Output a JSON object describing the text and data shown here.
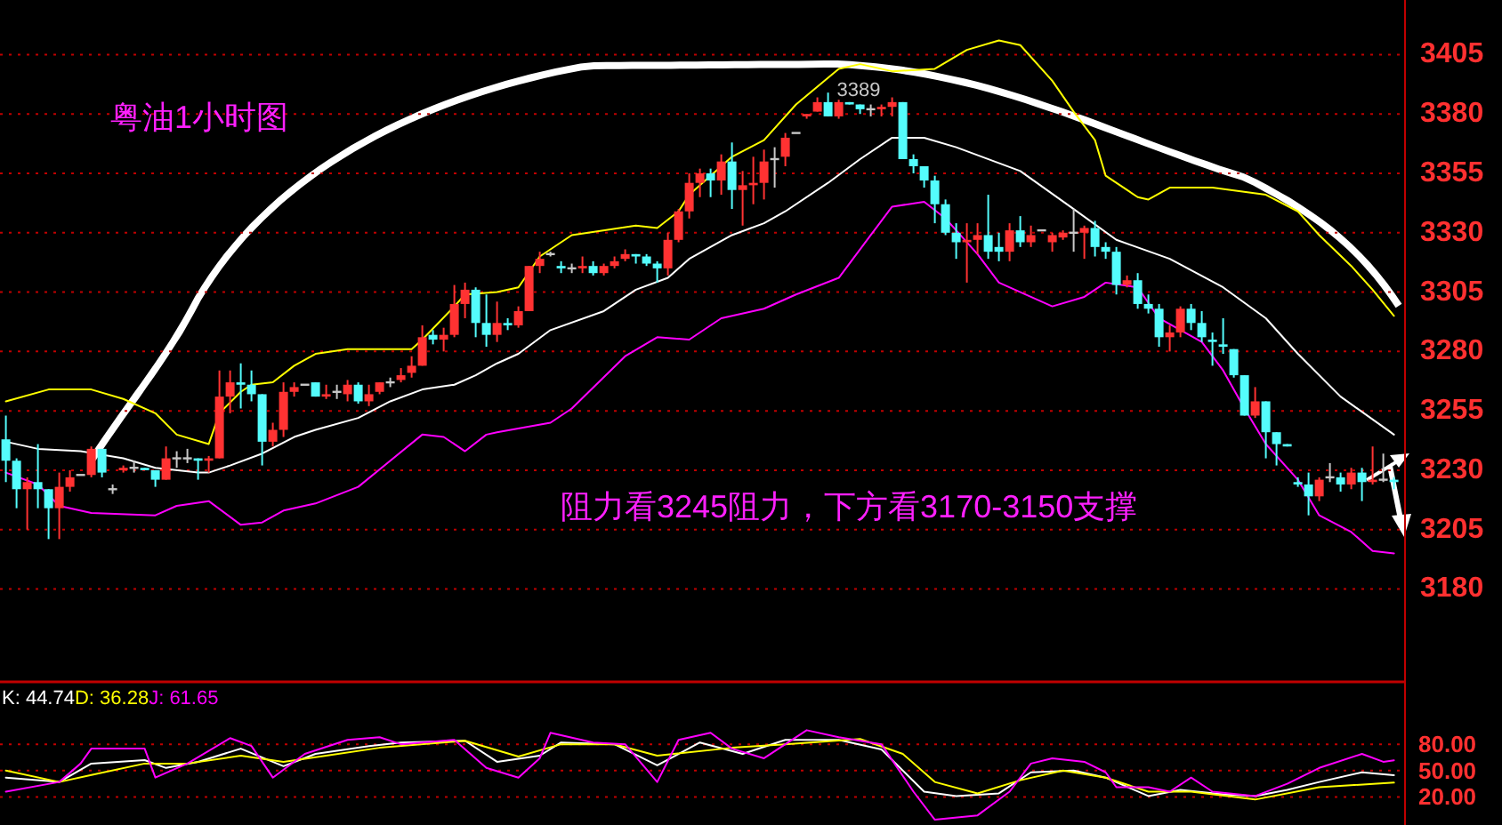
{
  "chart_data": [
    {
      "type": "candlestick",
      "title": "粤油1小时图",
      "categories": [
        null,
        null,
        null,
        null,
        null,
        null,
        null,
        null,
        null,
        null,
        null,
        null,
        null,
        null,
        null,
        null,
        null,
        null,
        null,
        null,
        null,
        null,
        null,
        null,
        null,
        null,
        null,
        null,
        null,
        null,
        null,
        null,
        null,
        null,
        null,
        null,
        null,
        null,
        null,
        null,
        null,
        null,
        null,
        null,
        null,
        null,
        null,
        null,
        null,
        null,
        null,
        null,
        null,
        null,
        null,
        null,
        null,
        null,
        null,
        null,
        null,
        null,
        null,
        null,
        null,
        null,
        null,
        null,
        null,
        null,
        null,
        null,
        null,
        null,
        null,
        null,
        null,
        null,
        null,
        null,
        null,
        null,
        null,
        null,
        null,
        null,
        null,
        null,
        null,
        null,
        null,
        null,
        null,
        null,
        null,
        null,
        null,
        null,
        null,
        null,
        null,
        null,
        null,
        null,
        null,
        null,
        null,
        null,
        null,
        null,
        null,
        null,
        null,
        null,
        null,
        null,
        null,
        null,
        null,
        null,
        null,
        null,
        null,
        null,
        null,
        null,
        null,
        null,
        null,
        null,
        null
      ],
      "ohlc": [
        [
          3243,
          3253,
          3225,
          3234
        ],
        [
          3234,
          3235,
          3214,
          3222
        ],
        [
          3222,
          3227,
          3205,
          3225
        ],
        [
          3225,
          3241,
          3214,
          3222
        ],
        [
          3222,
          3222,
          3201,
          3214
        ],
        [
          3214,
          3229,
          3201,
          3223
        ],
        [
          3223,
          3230,
          3221,
          3227
        ],
        [
          3228,
          3228,
          3228,
          3228
        ],
        [
          3228,
          3240,
          3227,
          3239
        ],
        [
          3239,
          3239,
          3227,
          3229
        ],
        [
          3222,
          3224,
          3220,
          3222
        ],
        [
          3230,
          3232,
          3229,
          3231
        ],
        [
          3231,
          3234,
          3229,
          3231
        ],
        [
          3231,
          3231,
          3230,
          3230
        ],
        [
          3230,
          3230,
          3223,
          3226
        ],
        [
          3226,
          3240,
          3226,
          3235
        ],
        [
          3235,
          3238,
          3231,
          3235
        ],
        [
          3235,
          3239,
          3233,
          3235
        ],
        [
          3235,
          3235,
          3226,
          3234
        ],
        [
          3234,
          3236,
          3229,
          3235
        ],
        [
          3235,
          3272,
          3235,
          3261
        ],
        [
          3261,
          3272,
          3254,
          3267
        ],
        [
          3267,
          3275,
          3256,
          3266
        ],
        [
          3266,
          3272,
          3259,
          3262
        ],
        [
          3262,
          3262,
          3232,
          3242
        ],
        [
          3242,
          3250,
          3240,
          3247
        ],
        [
          3247,
          3267,
          3244,
          3263
        ],
        [
          3263,
          3267,
          3261,
          3265
        ],
        [
          3266,
          3266,
          3266,
          3266
        ],
        [
          3267,
          3267,
          3261,
          3261
        ],
        [
          3261,
          3266,
          3260,
          3262
        ],
        [
          3263,
          3266,
          3260,
          3263
        ],
        [
          3262,
          3268,
          3259,
          3266
        ],
        [
          3266,
          3267,
          3258,
          3259
        ],
        [
          3259,
          3266,
          3257,
          3262
        ],
        [
          3263,
          3267,
          3262,
          3267
        ],
        [
          3267,
          3269,
          3265,
          3267
        ],
        [
          3268,
          3273,
          3267,
          3270
        ],
        [
          3271,
          3278,
          3269,
          3274
        ],
        [
          3274,
          3291,
          3274,
          3286
        ],
        [
          3287,
          3289,
          3283,
          3285
        ],
        [
          3285,
          3290,
          3280,
          3287
        ],
        [
          3287,
          3308,
          3286,
          3300
        ],
        [
          3300,
          3309,
          3294,
          3306
        ],
        [
          3306,
          3307,
          3286,
          3292
        ],
        [
          3292,
          3304,
          3282,
          3287
        ],
        [
          3287,
          3301,
          3284,
          3292
        ],
        [
          3292,
          3294,
          3289,
          3291
        ],
        [
          3291,
          3299,
          3290,
          3297
        ],
        [
          3297,
          3316,
          3297,
          3316
        ],
        [
          3316,
          3322,
          3313,
          3319
        ],
        [
          3321,
          3322,
          3320,
          3321
        ],
        [
          3316,
          3318,
          3313,
          3315
        ],
        [
          3315,
          3317,
          3313,
          3315
        ],
        [
          3315,
          3320,
          3313,
          3316
        ],
        [
          3316,
          3318,
          3312,
          3313
        ],
        [
          3313,
          3317,
          3312,
          3316
        ],
        [
          3316,
          3320,
          3315,
          3318
        ],
        [
          3319,
          3323,
          3318,
          3321
        ],
        [
          3321,
          3321,
          3317,
          3320
        ],
        [
          3320,
          3321,
          3316,
          3317
        ],
        [
          3317,
          3318,
          3309,
          3315
        ],
        [
          3315,
          3330,
          3312,
          3327
        ],
        [
          3327,
          3340,
          3326,
          3339
        ],
        [
          3339,
          3355,
          3336,
          3351
        ],
        [
          3351,
          3357,
          3345,
          3355
        ],
        [
          3355,
          3357,
          3345,
          3352
        ],
        [
          3352,
          3363,
          3346,
          3360
        ],
        [
          3360,
          3368,
          3340,
          3348
        ],
        [
          3348,
          3356,
          3333,
          3350
        ],
        [
          3350,
          3362,
          3342,
          3351
        ],
        [
          3351,
          3365,
          3344,
          3360
        ],
        [
          3361,
          3366,
          3349,
          3361
        ],
        [
          3362,
          3372,
          3358,
          3370
        ],
        [
          3372,
          3372,
          3372,
          3372
        ],
        [
          3379,
          3380,
          3378,
          3380
        ],
        [
          3381,
          3387,
          3381,
          3385
        ],
        [
          3385,
          3389,
          3379,
          3379
        ],
        [
          3379,
          3386,
          3378,
          3385
        ],
        [
          3385,
          3385,
          3384,
          3384
        ],
        [
          3384,
          3384,
          3380,
          3382
        ],
        [
          3382,
          3384,
          3379,
          3382
        ],
        [
          3382,
          3384,
          3379,
          3383
        ],
        [
          3383,
          3387,
          3379,
          3385
        ],
        [
          3385,
          3385,
          3361,
          3361
        ],
        [
          3361,
          3363,
          3355,
          3358
        ],
        [
          3358,
          3358,
          3349,
          3352
        ],
        [
          3352,
          3354,
          3334,
          3342
        ],
        [
          3342,
          3344,
          3329,
          3330
        ],
        [
          3330,
          3334,
          3319,
          3326
        ],
        [
          3326,
          3334,
          3309,
          3327
        ],
        [
          3327,
          3334,
          3321,
          3329
        ],
        [
          3329,
          3346,
          3319,
          3322
        ],
        [
          3324,
          3330,
          3318,
          3322
        ],
        [
          3322,
          3334,
          3318,
          3331
        ],
        [
          3331,
          3337,
          3324,
          3326
        ],
        [
          3326,
          3333,
          3324,
          3329
        ],
        [
          3331,
          3331,
          3331,
          3331
        ],
        [
          3326,
          3330,
          3322,
          3329
        ],
        [
          3328,
          3331,
          3327,
          3330
        ],
        [
          3330,
          3340,
          3322,
          3330
        ],
        [
          3330,
          3333,
          3319,
          3332
        ],
        [
          3332,
          3335,
          3320,
          3324
        ],
        [
          3324,
          3326,
          3319,
          3322
        ],
        [
          3322,
          3324,
          3304,
          3308
        ],
        [
          3308,
          3312,
          3307,
          3310
        ],
        [
          3310,
          3313,
          3298,
          3300
        ],
        [
          3300,
          3304,
          3296,
          3298
        ],
        [
          3298,
          3300,
          3282,
          3286
        ],
        [
          3286,
          3291,
          3280,
          3288
        ],
        [
          3288,
          3299,
          3286,
          3298
        ],
        [
          3298,
          3300,
          3289,
          3292
        ],
        [
          3292,
          3297,
          3284,
          3286
        ],
        [
          3285,
          3288,
          3274,
          3284
        ],
        [
          3283,
          3294,
          3279,
          3282
        ],
        [
          3281,
          3281,
          3269,
          3270
        ],
        [
          3270,
          3270,
          3253,
          3253
        ],
        [
          3253,
          3265,
          3252,
          3259
        ],
        [
          3259,
          3259,
          3235,
          3246
        ],
        [
          3246,
          3246,
          3232,
          3241
        ],
        [
          3241,
          3241,
          3240,
          3240
        ],
        [
          3225,
          3227,
          3223,
          3224
        ],
        [
          3224,
          3229,
          3211,
          3219
        ],
        [
          3219,
          3227,
          3217,
          3226
        ],
        [
          3227,
          3233,
          3225,
          3227
        ],
        [
          3227,
          3229,
          3221,
          3224
        ],
        [
          3224,
          3231,
          3222,
          3229
        ],
        [
          3229,
          3231,
          3217,
          3225
        ],
        [
          3225,
          3240,
          3224,
          3226
        ],
        [
          3226,
          3237,
          3225,
          3226
        ],
        [
          3226,
          3227,
          3222,
          3225
        ]
      ],
      "series": [
        {
          "type": "line",
          "color": "#ffff00",
          "values": [
            3259,
            null,
            null,
            null,
            3264,
            null,
            null,
            null,
            3264,
            null,
            null,
            3260,
            null,
            null,
            3254,
            null,
            3245,
            null,
            null,
            3241,
            3254,
            null,
            3263,
            3266,
            null,
            3267,
            null,
            3274,
            null,
            3279,
            null,
            null,
            3281,
            null,
            null,
            3281,
            null,
            null,
            3281,
            3285,
            null,
            null,
            3299,
            3304,
            null,
            null,
            3305,
            null,
            3307,
            null,
            3320,
            null,
            null,
            3329,
            null,
            null,
            null,
            null,
            null,
            3333,
            null,
            3332,
            null,
            3339,
            3346,
            null,
            null,
            3358,
            3362,
            null,
            null,
            3369,
            null,
            null,
            3384,
            null,
            null,
            null,
            3399,
            null,
            3401,
            null,
            null,
            3398,
            null,
            null,
            null,
            3399,
            null,
            null,
            3407,
            null,
            null,
            3411,
            null,
            3409,
            null,
            null,
            3394,
            null,
            3381,
            null,
            3369,
            3354,
            null,
            null,
            3345,
            3344,
            null,
            3349,
            null,
            null,
            null,
            3349,
            null,
            null,
            null,
            null,
            3346,
            null,
            null,
            3339,
            null,
            3329,
            null,
            null,
            3316,
            null,
            3306,
            null,
            3295
          ]
        },
        {
          "type": "line",
          "color": "#ffffff",
          "values": [
            3242,
            null,
            null,
            3239,
            null,
            null,
            null,
            3238,
            null,
            null,
            null,
            3235,
            null,
            null,
            3231,
            null,
            null,
            null,
            3229,
            3229,
            null,
            3232,
            null,
            null,
            3237,
            null,
            null,
            3244,
            null,
            3247,
            null,
            null,
            null,
            3252,
            null,
            null,
            3259,
            null,
            null,
            3264,
            null,
            null,
            3266,
            null,
            3270,
            null,
            3275,
            null,
            3279,
            null,
            null,
            3289,
            null,
            null,
            null,
            null,
            3297,
            null,
            null,
            3306,
            null,
            null,
            3311,
            null,
            3319,
            null,
            null,
            null,
            3329,
            null,
            null,
            3334,
            null,
            3339,
            null,
            null,
            null,
            3351,
            null,
            null,
            3361,
            null,
            null,
            3370,
            null,
            null,
            3370,
            null,
            null,
            3366,
            null,
            null,
            null,
            null,
            null,
            3356,
            null,
            null,
            null,
            null,
            3340,
            null,
            null,
            null,
            3327,
            null,
            null,
            null,
            null,
            3319,
            null,
            null,
            null,
            null,
            3307,
            null,
            null,
            null,
            3294,
            null,
            null,
            3279,
            null,
            null,
            null,
            3261,
            null,
            null,
            null,
            null,
            3245
          ]
        },
        {
          "type": "line",
          "color": "#ff00ff",
          "values": [
            3229,
            null,
            null,
            3224,
            null,
            3215,
            null,
            null,
            3212,
            null,
            null,
            null,
            null,
            null,
            3211,
            null,
            3215,
            null,
            null,
            3217,
            null,
            null,
            3207,
            null,
            3208,
            null,
            3213,
            null,
            null,
            3216,
            null,
            null,
            null,
            3223,
            null,
            null,
            3234,
            null,
            null,
            3245,
            null,
            3244,
            null,
            3238,
            null,
            3245,
            3246,
            null,
            null,
            null,
            null,
            3250,
            null,
            3256,
            null,
            null,
            null,
            null,
            3278,
            null,
            null,
            3286,
            null,
            null,
            3285,
            null,
            null,
            3294,
            null,
            null,
            null,
            3298,
            null,
            null,
            3304,
            null,
            null,
            null,
            3311,
            null,
            null,
            3329,
            null,
            3341,
            null,
            null,
            3343,
            null,
            3336,
            null,
            null,
            3321,
            null,
            3309,
            null,
            null,
            null,
            null,
            3299,
            null,
            null,
            3303,
            null,
            3309,
            null,
            null,
            3307,
            null,
            3294,
            null,
            null,
            null,
            3284,
            null,
            3272,
            null,
            3256,
            null,
            3241,
            null,
            null,
            3226,
            null,
            3211,
            null,
            null,
            3204,
            null,
            3196,
            null,
            3195
          ]
        }
      ],
      "ylim": [
        3142,
        3428
      ],
      "yticks": [
        3180,
        3205,
        3230,
        3255,
        3280,
        3305,
        3330,
        3355,
        3380,
        3405
      ],
      "grid": "y",
      "tick_labels": "y",
      "annotations": [
        "3389",
        "阻力看3245阻力，下方看3170-3150支撑"
      ]
    },
    {
      "type": "line",
      "categories": [
        null,
        null,
        null,
        null,
        null,
        null,
        null,
        null,
        null,
        null,
        null,
        null,
        null,
        null,
        null,
        null,
        null,
        null,
        null,
        null,
        null,
        null,
        null,
        null,
        null,
        null,
        null,
        null,
        null,
        null,
        null,
        null,
        null,
        null,
        null,
        null,
        null,
        null,
        null,
        null,
        null,
        null,
        null,
        null,
        null,
        null,
        null,
        null,
        null,
        null,
        null,
        null,
        null,
        null,
        null,
        null,
        null,
        null,
        null,
        null,
        null,
        null,
        null,
        null,
        null,
        null,
        null,
        null,
        null,
        null,
        null,
        null,
        null,
        null,
        null,
        null,
        null,
        null,
        null,
        null,
        null,
        null,
        null,
        null,
        null,
        null,
        null,
        null,
        null,
        null,
        null,
        null,
        null,
        null,
        null,
        null,
        null,
        null,
        null,
        null,
        null,
        null,
        null,
        null,
        null,
        null,
        null,
        null,
        null,
        null,
        null,
        null,
        null,
        null,
        null,
        null,
        null,
        null,
        null,
        null,
        null,
        null,
        null,
        null,
        null,
        null,
        null,
        null,
        null,
        null,
        null
      ],
      "series": [
        {
          "name": "K: 44.74",
          "color": "#ffffff",
          "values": [
            42,
            null,
            null,
            null,
            null,
            37,
            null,
            null,
            58,
            null,
            null,
            null,
            null,
            62,
            null,
            53,
            null,
            null,
            60,
            null,
            null,
            null,
            75,
            null,
            null,
            null,
            55,
            null,
            null,
            69,
            null,
            null,
            null,
            null,
            78,
            null,
            null,
            82,
            null,
            null,
            null,
            null,
            null,
            84,
            null,
            null,
            60,
            null,
            null,
            null,
            67,
            null,
            82,
            null,
            null,
            null,
            null,
            80,
            null,
            null,
            null,
            56,
            null,
            null,
            null,
            82,
            null,
            null,
            null,
            69,
            null,
            null,
            null,
            85,
            null,
            null,
            null,
            null,
            85,
            null,
            null,
            null,
            74,
            null,
            null,
            null,
            26,
            null,
            null,
            21,
            null,
            null,
            null,
            24,
            null,
            null,
            48,
            null,
            null,
            null,
            50,
            null,
            null,
            42,
            null,
            null,
            null,
            21,
            null,
            null,
            28,
            null,
            null,
            null,
            23,
            null,
            null,
            21,
            null,
            null,
            28,
            null,
            null,
            37,
            null,
            null,
            null,
            48,
            null,
            null,
            44.74
          ]
        },
        {
          "name": "D: 36.28",
          "color": "#ffff00",
          "values": [
            50,
            null,
            null,
            null,
            null,
            37,
            null,
            null,
            45,
            null,
            null,
            null,
            null,
            58,
            null,
            null,
            null,
            58,
            null,
            null,
            null,
            null,
            67,
            null,
            null,
            null,
            60,
            null,
            null,
            null,
            67,
            null,
            null,
            null,
            null,
            76,
            null,
            null,
            null,
            null,
            null,
            null,
            null,
            84,
            null,
            null,
            null,
            null,
            66,
            null,
            null,
            null,
            80,
            null,
            null,
            null,
            null,
            80,
            null,
            null,
            null,
            67,
            null,
            null,
            null,
            null,
            null,
            null,
            76,
            null,
            null,
            null,
            null,
            80,
            null,
            null,
            null,
            null,
            null,
            null,
            86,
            null,
            null,
            null,
            69,
            null,
            null,
            37,
            null,
            null,
            null,
            24,
            null,
            null,
            null,
            39,
            null,
            null,
            null,
            50,
            null,
            null,
            null,
            42,
            null,
            null,
            null,
            26,
            null,
            null,
            null,
            26,
            null,
            null,
            null,
            null,
            null,
            17,
            null,
            null,
            null,
            null,
            null,
            31,
            null,
            null,
            null,
            null,
            null,
            null,
            36.28
          ]
        },
        {
          "name": "J: 61.65",
          "color": "#ff00ff",
          "values": [
            26,
            null,
            null,
            null,
            null,
            37,
            null,
            58,
            75,
            null,
            null,
            null,
            null,
            75,
            42,
            null,
            null,
            58,
            null,
            null,
            null,
            87,
            null,
            78,
            null,
            42,
            null,
            null,
            69,
            null,
            null,
            null,
            85,
            null,
            null,
            88,
            null,
            80,
            null,
            null,
            null,
            null,
            85,
            null,
            null,
            53,
            null,
            null,
            42,
            null,
            64,
            93,
            null,
            null,
            null,
            82,
            null,
            null,
            80,
            null,
            null,
            37,
            null,
            85,
            null,
            null,
            93,
            null,
            75,
            null,
            null,
            64,
            null,
            null,
            null,
            96,
            null,
            null,
            88,
            null,
            null,
            null,
            80,
            null,
            null,
            26,
            null,
            -6,
            null,
            null,
            null,
            -1,
            null,
            null,
            26,
            null,
            58,
            null,
            64,
            null,
            null,
            60,
            null,
            48,
            31,
            null,
            null,
            31,
            null,
            26,
            null,
            42,
            null,
            26,
            null,
            null,
            null,
            21,
            null,
            null,
            35,
            null,
            null,
            53,
            null,
            null,
            null,
            69,
            null,
            60,
            61.65
          ]
        }
      ],
      "ylim": [
        -12,
        146
      ],
      "yticks": [
        {
          "value": 20,
          "label": "20.00"
        },
        {
          "value": 50,
          "label": "50.00"
        },
        {
          "value": 80,
          "label": "80.00"
        }
      ],
      "grid": "y",
      "tick_labels": "y"
    }
  ]
}
